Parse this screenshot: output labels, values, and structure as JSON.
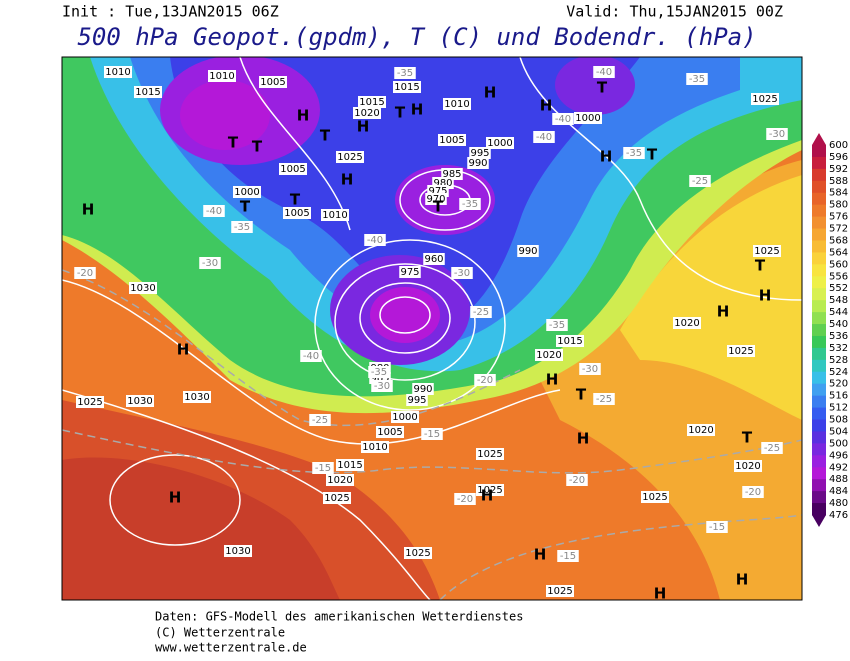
{
  "header": {
    "init": "Init : Tue,13JAN2015 06Z",
    "valid": "Valid: Thu,15JAN2015 00Z",
    "title": "500 hPa Geopot.(gpdm), T (C) und Bodendr. (hPa)"
  },
  "colorbar": {
    "ticks": [
      600,
      596,
      592,
      588,
      584,
      580,
      576,
      572,
      568,
      564,
      560,
      556,
      552,
      548,
      544,
      540,
      536,
      532,
      528,
      524,
      520,
      516,
      512,
      508,
      504,
      500,
      496,
      492,
      488,
      484,
      480,
      476
    ],
    "colors": [
      "#b0104a",
      "#c81e3c",
      "#d83a2c",
      "#e05028",
      "#e86428",
      "#ee7a2a",
      "#f29030",
      "#f6a632",
      "#f8bc34",
      "#fad23a",
      "#f8e440",
      "#eef048",
      "#d8f050",
      "#b8ec50",
      "#90e050",
      "#60d050",
      "#38c858",
      "#30c890",
      "#30c8c0",
      "#38c0e8",
      "#40a0f0",
      "#3a7ef0",
      "#345cf0",
      "#3c40e8",
      "#5a30e0",
      "#7a28e0",
      "#9a20e0",
      "#b418d8",
      "#9010b0",
      "#6a0a88",
      "#480060"
    ]
  },
  "map": {
    "isobar_labels": [
      "1010",
      "1015",
      "1010",
      "1005",
      "1015",
      "1015",
      "1020",
      "1010",
      "1005",
      "1000",
      "995",
      "990",
      "985",
      "980",
      "975",
      "970",
      "1005",
      "1025",
      "1000",
      "1005",
      "1010",
      "960",
      "975",
      "980",
      "985",
      "990",
      "995",
      "1000",
      "1005",
      "1010",
      "1015",
      "1020",
      "1025",
      "1025",
      "1025",
      "1025",
      "1025",
      "1025",
      "1030",
      "1030",
      "1030",
      "1025",
      "1030",
      "1000",
      "990",
      "1020",
      "1015",
      "1020",
      "1025",
      "1025",
      "1020",
      "1020",
      "1025"
    ],
    "pressure_centers": [
      "H",
      "H",
      "H",
      "H",
      "H",
      "H",
      "H",
      "H",
      "H",
      "H",
      "H",
      "H",
      "H",
      "H",
      "H",
      "H",
      "H",
      "H",
      "T",
      "T",
      "T",
      "T",
      "T",
      "T",
      "T",
      "T",
      "T",
      "T",
      "T",
      "T"
    ],
    "temperature_labels": [
      "-35",
      "-40",
      "-40",
      "-40",
      "-35",
      "-35",
      "-25",
      "-30",
      "-40",
      "-35",
      "-30",
      "-20",
      "-40",
      "-30",
      "-35",
      "-25",
      "-35",
      "-30",
      "-25",
      "-40",
      "-35",
      "-30",
      "-20",
      "-25",
      "-15",
      "-15",
      "-20",
      "-20",
      "-20",
      "-15",
      "-15",
      "-25"
    ]
  },
  "footer": [
    "Daten: GFS-Modell des amerikanischen Wetterdienstes",
    "(C) Wetterzentrale",
    "www.wetterzentrale.de"
  ]
}
